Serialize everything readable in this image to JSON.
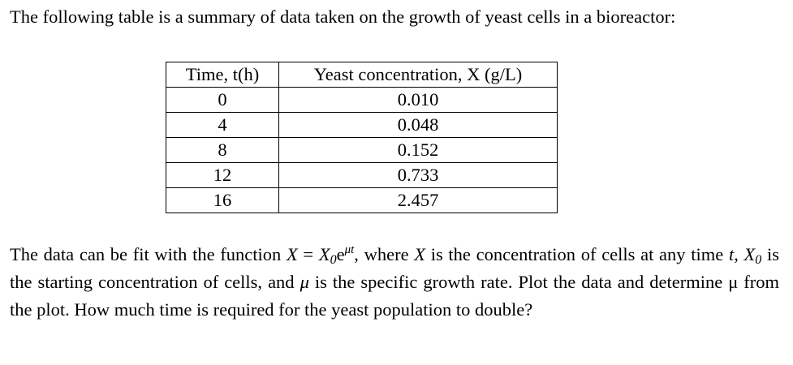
{
  "intro": {
    "text": "The following table is a summary of data taken on the growth of yeast cells in a bioreactor:"
  },
  "table": {
    "headers": [
      "Time, t(h)",
      "Yeast concentration, X (g/L)"
    ],
    "rows": [
      [
        "0",
        "0.010"
      ],
      [
        "4",
        "0.048"
      ],
      [
        "8",
        "0.152"
      ],
      [
        "12",
        "0.733"
      ],
      [
        "16",
        "2.457"
      ]
    ]
  },
  "question": {
    "p1": "The data can be fit with the function ",
    "X": "X",
    "eq": " = ",
    "X0": "X",
    "X0_sub": "0",
    "e": "e",
    "exp": "μt",
    "p2": ", where ",
    "X2": "X",
    "p3": " is the concentration of cells at any time ",
    "t": "t",
    "p4": ", ",
    "X3": "X",
    "X3_sub": "0",
    "p5": " is the starting concentration of cells, and ",
    "mu": "μ",
    "p6": " is the specific growth rate. Plot the data and determine μ from the plot. How much time is required for the yeast population to double?"
  }
}
